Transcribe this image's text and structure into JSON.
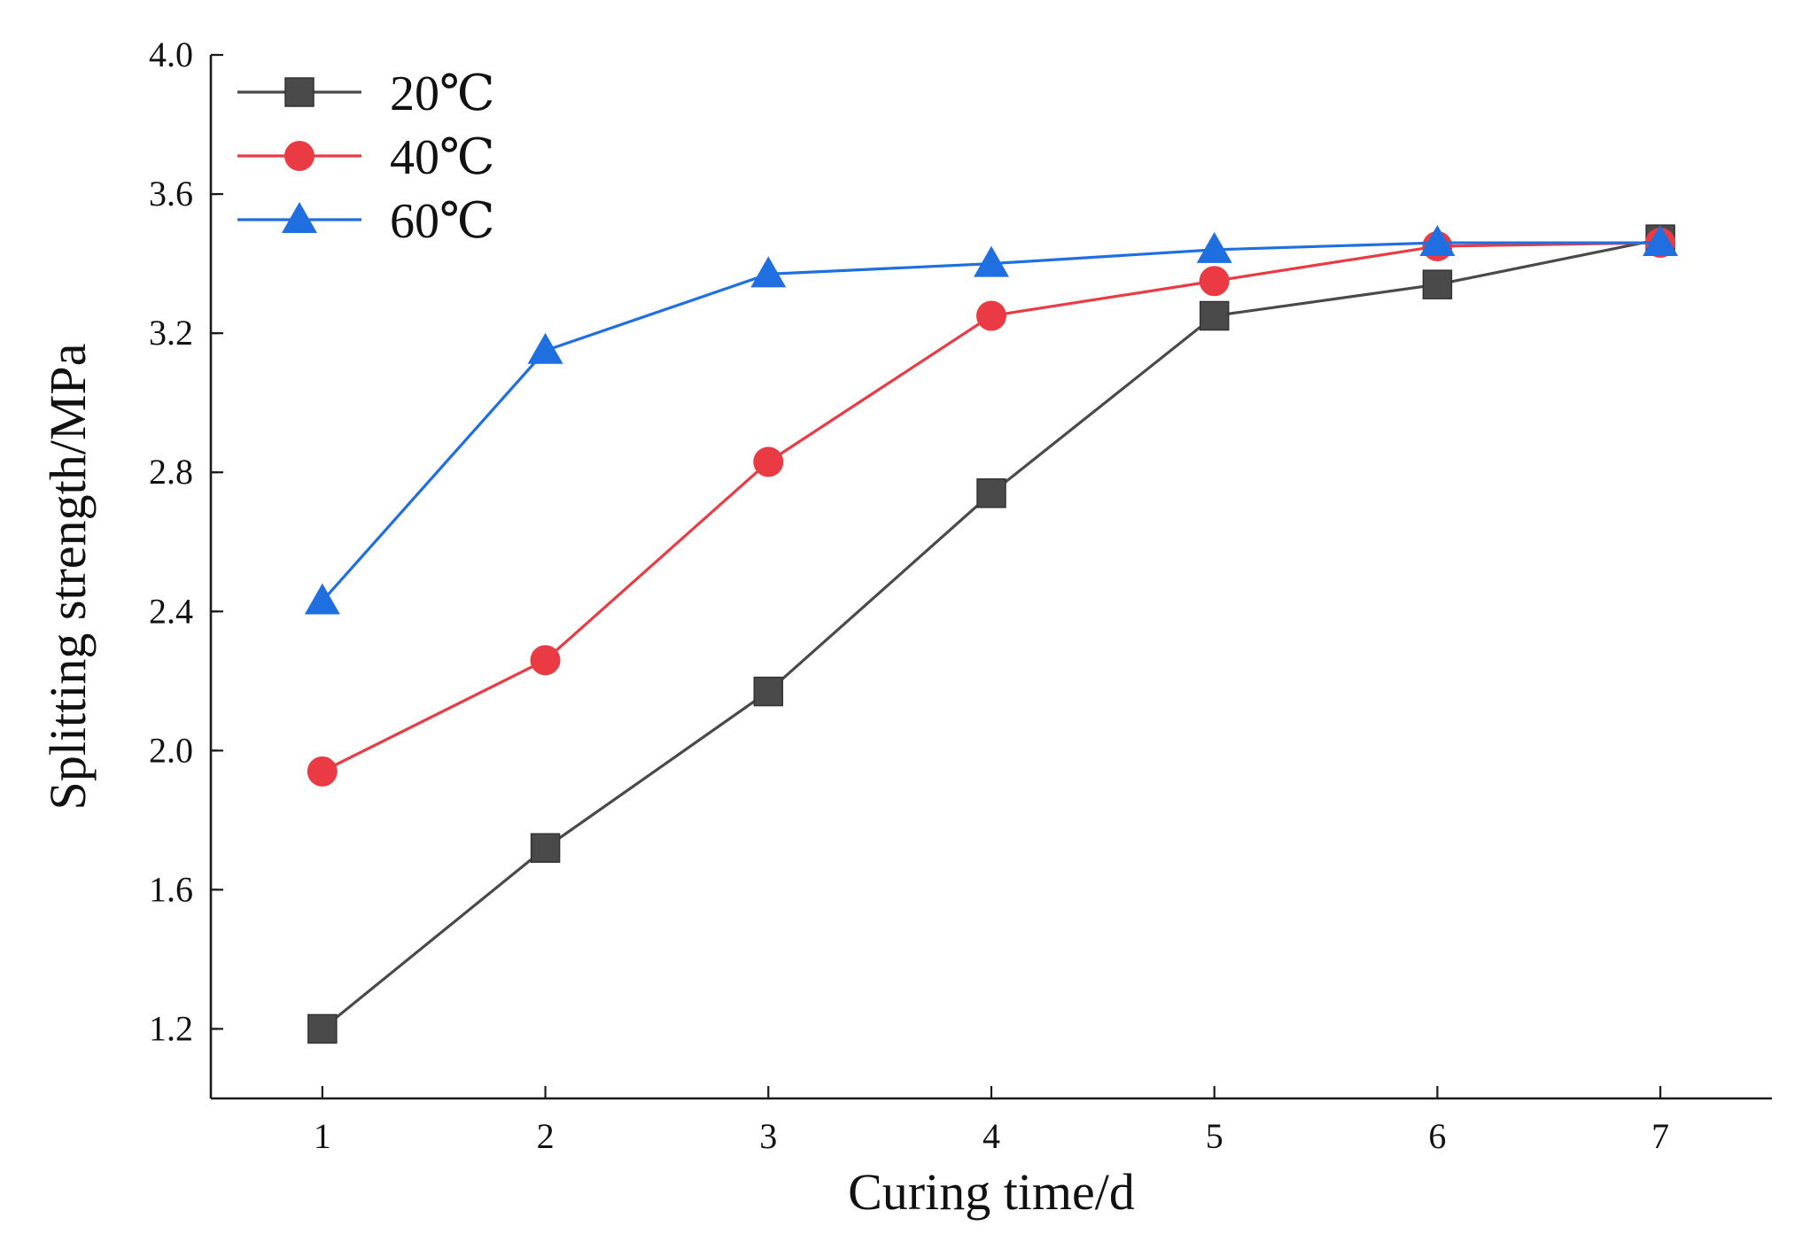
{
  "chart_data": {
    "type": "line",
    "title": "",
    "xlabel": "Curing time/d",
    "ylabel": "Splitting strength/MPa",
    "x": [
      1,
      2,
      3,
      4,
      5,
      6,
      7
    ],
    "x_tick_labels": [
      "1",
      "2",
      "3",
      "4",
      "5",
      "6",
      "7"
    ],
    "xlim": [
      0.5,
      7.5
    ],
    "ylim": [
      1.0,
      4.0
    ],
    "y_ticks": [
      1.2,
      1.6,
      2.0,
      2.4,
      2.8,
      3.2,
      3.6,
      4.0
    ],
    "y_tick_labels": [
      "1.2",
      "1.6",
      "2.0",
      "2.4",
      "2.8",
      "3.2",
      "3.6",
      "4.0"
    ],
    "grid": false,
    "legend_position": "top-left",
    "series": [
      {
        "name": "20℃",
        "marker": "square",
        "color": "#4a4a4a",
        "values": [
          1.2,
          1.72,
          2.17,
          2.74,
          3.25,
          3.34,
          3.47
        ]
      },
      {
        "name": "40℃",
        "marker": "circle",
        "color": "#ea3b44",
        "values": [
          1.94,
          2.26,
          2.83,
          3.25,
          3.35,
          3.45,
          3.46
        ]
      },
      {
        "name": "60℃",
        "marker": "triangle",
        "color": "#1f6fe0",
        "values": [
          2.43,
          3.15,
          3.37,
          3.4,
          3.44,
          3.46,
          3.46
        ]
      }
    ]
  }
}
